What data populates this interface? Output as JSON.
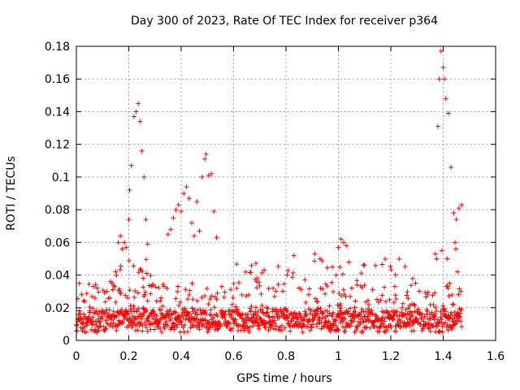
{
  "chart_data": {
    "type": "scatter",
    "title": "Day 300 of 2023, Rate Of TEC Index for receiver p364",
    "xlabel": "GPS time / hours",
    "ylabel": "ROTI / TECUs",
    "xlim": [
      0,
      1.6
    ],
    "ylim": [
      0,
      0.18
    ],
    "grid": true,
    "marker": "+",
    "marker_color": "#ff0000",
    "xticks": [
      "0",
      "0.2",
      "0.4",
      "0.6",
      "0.8",
      "1",
      "1.2",
      "1.4",
      "1.6"
    ],
    "yticks": [
      "0",
      "0.02",
      "0.04",
      "0.06",
      "0.08",
      "0.1",
      "0.12",
      "0.14",
      "0.16",
      "0.18"
    ],
    "x_range_of_samples": [
      0,
      1.47
    ],
    "baseline_band": [
      0.005,
      0.02
    ],
    "secondary_band": [
      0.02,
      0.035
    ],
    "spikes": [
      {
        "x": 0.2,
        "y": 0.074
      },
      {
        "x": 0.203,
        "y": 0.092
      },
      {
        "x": 0.21,
        "y": 0.107
      },
      {
        "x": 0.22,
        "y": 0.137
      },
      {
        "x": 0.228,
        "y": 0.14
      },
      {
        "x": 0.236,
        "y": 0.145
      },
      {
        "x": 0.243,
        "y": 0.134
      },
      {
        "x": 0.25,
        "y": 0.116
      },
      {
        "x": 0.258,
        "y": 0.1
      },
      {
        "x": 0.265,
        "y": 0.074
      },
      {
        "x": 0.272,
        "y": 0.059
      },
      {
        "x": 0.16,
        "y": 0.06
      },
      {
        "x": 0.168,
        "y": 0.064
      },
      {
        "x": 0.175,
        "y": 0.056
      },
      {
        "x": 0.183,
        "y": 0.06
      },
      {
        "x": 0.19,
        "y": 0.057
      },
      {
        "x": 0.35,
        "y": 0.065
      },
      {
        "x": 0.36,
        "y": 0.068
      },
      {
        "x": 0.37,
        "y": 0.075
      },
      {
        "x": 0.38,
        "y": 0.08
      },
      {
        "x": 0.39,
        "y": 0.083
      },
      {
        "x": 0.4,
        "y": 0.079
      },
      {
        "x": 0.41,
        "y": 0.09
      },
      {
        "x": 0.42,
        "y": 0.094
      },
      {
        "x": 0.43,
        "y": 0.087
      },
      {
        "x": 0.44,
        "y": 0.072
      },
      {
        "x": 0.45,
        "y": 0.064
      },
      {
        "x": 0.46,
        "y": 0.085
      },
      {
        "x": 0.47,
        "y": 0.067
      },
      {
        "x": 0.48,
        "y": 0.1
      },
      {
        "x": 0.49,
        "y": 0.111
      },
      {
        "x": 0.495,
        "y": 0.114
      },
      {
        "x": 0.505,
        "y": 0.101
      },
      {
        "x": 0.515,
        "y": 0.102
      },
      {
        "x": 0.525,
        "y": 0.079
      },
      {
        "x": 0.535,
        "y": 0.063
      },
      {
        "x": 1.0,
        "y": 0.057
      },
      {
        "x": 1.01,
        "y": 0.062
      },
      {
        "x": 1.02,
        "y": 0.06
      },
      {
        "x": 1.03,
        "y": 0.058
      },
      {
        "x": 1.04,
        "y": 0.048
      },
      {
        "x": 0.91,
        "y": 0.053
      },
      {
        "x": 0.93,
        "y": 0.05
      },
      {
        "x": 0.83,
        "y": 0.052
      },
      {
        "x": 1.38,
        "y": 0.131
      },
      {
        "x": 1.385,
        "y": 0.16
      },
      {
        "x": 1.392,
        "y": 0.177
      },
      {
        "x": 1.4,
        "y": 0.167
      },
      {
        "x": 1.405,
        "y": 0.16
      },
      {
        "x": 1.41,
        "y": 0.148
      },
      {
        "x": 1.42,
        "y": 0.139
      },
      {
        "x": 1.43,
        "y": 0.106
      },
      {
        "x": 1.44,
        "y": 0.078
      },
      {
        "x": 1.445,
        "y": 0.06
      },
      {
        "x": 1.45,
        "y": 0.074
      },
      {
        "x": 1.46,
        "y": 0.081
      },
      {
        "x": 1.47,
        "y": 0.083
      },
      {
        "x": 1.37,
        "y": 0.053
      },
      {
        "x": 1.375,
        "y": 0.05
      },
      {
        "x": 1.395,
        "y": 0.055
      },
      {
        "x": 1.415,
        "y": 0.05
      },
      {
        "x": 1.448,
        "y": 0.056
      },
      {
        "x": 1.455,
        "y": 0.042
      }
    ]
  }
}
